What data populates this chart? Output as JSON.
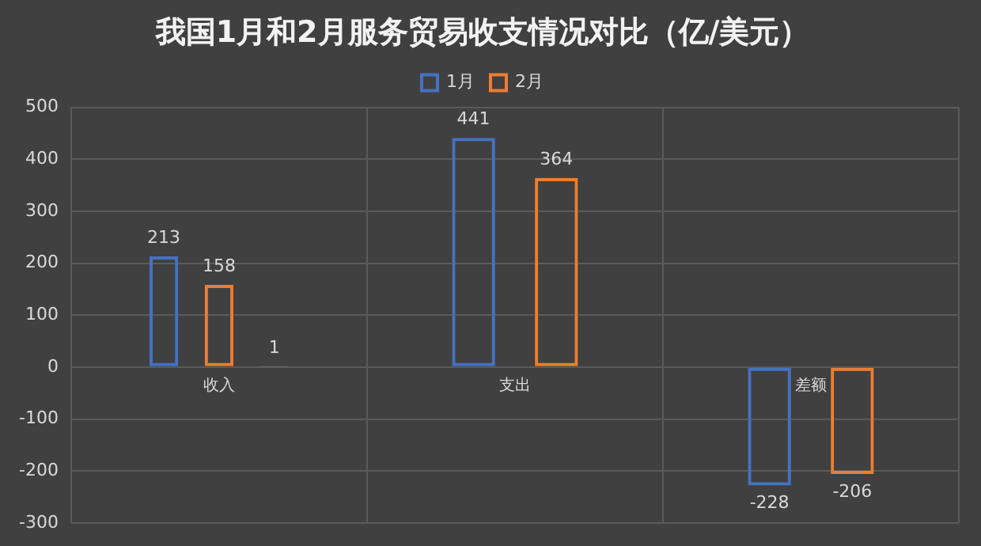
{
  "chart_data": {
    "type": "bar",
    "title": "我国1月和2月服务贸易收支情况对比（亿/美元）",
    "categories": [
      "收入",
      "支出",
      "差额"
    ],
    "series": [
      {
        "name": "1月",
        "color": "#4472c4",
        "values": [
          213,
          441,
          -228
        ]
      },
      {
        "name": "2月",
        "color": "#ed7d31",
        "values": [
          158,
          364,
          -206
        ]
      },
      {
        "color": "#d9d9d9",
        "values": [
          1,
          null,
          null
        ]
      }
    ],
    "ylim": [
      -300,
      500
    ],
    "yticks": [
      -300,
      -200,
      -100,
      0,
      100,
      200,
      300,
      400,
      500
    ],
    "grid": true,
    "legend": "top",
    "data_labels": true
  }
}
